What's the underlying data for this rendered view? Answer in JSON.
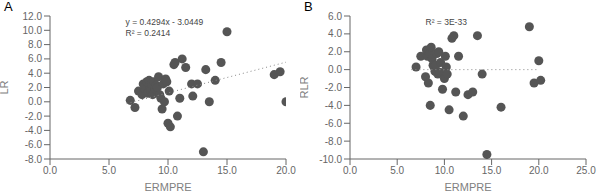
{
  "chart_data": [
    {
      "type": "scatter",
      "title": "A",
      "xlabel": "ERMPRE",
      "ylabel": "LR",
      "annotations": [
        "y = 0.4294x - 3.0449",
        "R² = 0.2414"
      ],
      "xlim": [
        0.0,
        20.0
      ],
      "ylim": [
        -8.0,
        12.0
      ],
      "xticks": [
        {
          "value": 0.0,
          "label": "0.0"
        },
        {
          "value": 5.0,
          "label": "5.0"
        },
        {
          "value": 10.0,
          "label": "10.0"
        },
        {
          "value": 15.0,
          "label": "15.0"
        },
        {
          "value": 20.0,
          "label": "20.0"
        }
      ],
      "yticks": [
        {
          "value": -8.0,
          "label": "-8.0"
        },
        {
          "value": -6.0,
          "label": "-6.0"
        },
        {
          "value": -4.0,
          "label": "-4.0"
        },
        {
          "value": -2.0,
          "label": "-2.0"
        },
        {
          "value": 0.0,
          "label": "0.0"
        },
        {
          "value": 2.0,
          "label": "2.0"
        },
        {
          "value": 4.0,
          "label": "4.0"
        },
        {
          "value": 6.0,
          "label": "6.0"
        },
        {
          "value": 8.0,
          "label": "8.0"
        },
        {
          "value": 10.0,
          "label": "10.0"
        },
        {
          "value": 12.0,
          "label": "12.0"
        }
      ],
      "grid": false,
      "series": [
        {
          "type": "scatter",
          "marker": "circle",
          "color": "#555555",
          "x": [
            6.8,
            7.2,
            7.5,
            7.8,
            7.9,
            8.0,
            8.1,
            8.2,
            8.3,
            8.4,
            8.5,
            8.55,
            8.6,
            8.7,
            8.8,
            8.9,
            9.0,
            9.1,
            9.2,
            9.3,
            9.4,
            9.5,
            9.6,
            9.7,
            9.8,
            9.9,
            10.0,
            10.1,
            10.2,
            10.5,
            10.6,
            10.8,
            11.0,
            11.2,
            11.5,
            12.0,
            12.1,
            12.5,
            13.0,
            13.2,
            13.5,
            14.0,
            14.5,
            15.0,
            19.0,
            19.5,
            20.0
          ],
          "values": [
            0.2,
            -0.8,
            1.5,
            1.0,
            2.5,
            1.8,
            2.2,
            2.8,
            1.2,
            3.0,
            2.0,
            1.5,
            2.4,
            1.0,
            2.8,
            1.8,
            2.3,
            2.0,
            3.5,
            1.0,
            0.5,
            -1.0,
            2.5,
            0.0,
            3.2,
            2.8,
            -3.0,
            1.5,
            -3.5,
            5.2,
            5.5,
            -2.0,
            0.5,
            6.0,
            4.8,
            2.5,
            0.8,
            2.5,
            -7.0,
            4.5,
            0.0,
            3.0,
            5.5,
            9.8,
            3.8,
            4.2,
            0.0
          ]
        },
        {
          "type": "line",
          "line_style": "dotted",
          "color": "#888888",
          "x": [
            6.5,
            20.0
          ],
          "values": [
            -0.2538,
            5.5431
          ]
        }
      ]
    },
    {
      "type": "scatter",
      "title": "B",
      "xlabel": "ERMPRE",
      "ylabel": "RLR",
      "annotations": [
        "R² = 3E-33"
      ],
      "xlim": [
        0.0,
        25.0
      ],
      "ylim": [
        -10.0,
        6.0
      ],
      "xticks": [
        {
          "value": 0.0,
          "label": "0.0"
        },
        {
          "value": 5.0,
          "label": "5.0"
        },
        {
          "value": 10.0,
          "label": "10.0"
        },
        {
          "value": 15.0,
          "label": "15.0"
        },
        {
          "value": 20.0,
          "label": "20.0"
        },
        {
          "value": 25.0,
          "label": "25.0"
        }
      ],
      "yticks": [
        {
          "value": -10.0,
          "label": "-10.0"
        },
        {
          "value": -8.0,
          "label": "-8.0"
        },
        {
          "value": -6.0,
          "label": "-6.0"
        },
        {
          "value": -4.0,
          "label": "-4.0"
        },
        {
          "value": -2.0,
          "label": "-2.0"
        },
        {
          "value": 0.0,
          "label": "0.0"
        },
        {
          "value": 2.0,
          "label": "2.0"
        },
        {
          "value": 4.0,
          "label": "4.0"
        },
        {
          "value": 6.0,
          "label": "6.0"
        }
      ],
      "grid": false,
      "series": [
        {
          "type": "scatter",
          "marker": "circle",
          "color": "#555555",
          "x": [
            7.0,
            7.5,
            8.0,
            8.1,
            8.2,
            8.3,
            8.4,
            8.5,
            8.6,
            8.7,
            8.8,
            8.9,
            9.0,
            9.1,
            9.2,
            9.3,
            9.4,
            9.5,
            9.6,
            9.8,
            10.0,
            10.1,
            10.2,
            10.3,
            10.5,
            10.8,
            11.0,
            11.2,
            11.5,
            12.0,
            12.5,
            13.0,
            13.5,
            14.0,
            14.5,
            16.0,
            19.0,
            19.5,
            20.0,
            20.2
          ],
          "values": [
            0.3,
            1.5,
            -0.8,
            2.2,
            1.5,
            -1.5,
            1.8,
            -4.0,
            2.5,
            1.2,
            0.5,
            0.3,
            -0.2,
            0.5,
            1.8,
            -0.5,
            2.0,
            -0.3,
            0.8,
            -2.2,
            -1.0,
            1.5,
            0.3,
            -0.5,
            -4.5,
            3.5,
            3.8,
            -2.5,
            1.5,
            -5.2,
            -2.8,
            -2.5,
            3.8,
            -0.5,
            -9.5,
            -4.2,
            4.8,
            -1.5,
            1.0,
            -1.2
          ]
        },
        {
          "type": "line",
          "line_style": "dotted",
          "color": "#888888",
          "x": [
            6.5,
            20.0
          ],
          "values": [
            0.0,
            0.0
          ]
        }
      ]
    }
  ]
}
